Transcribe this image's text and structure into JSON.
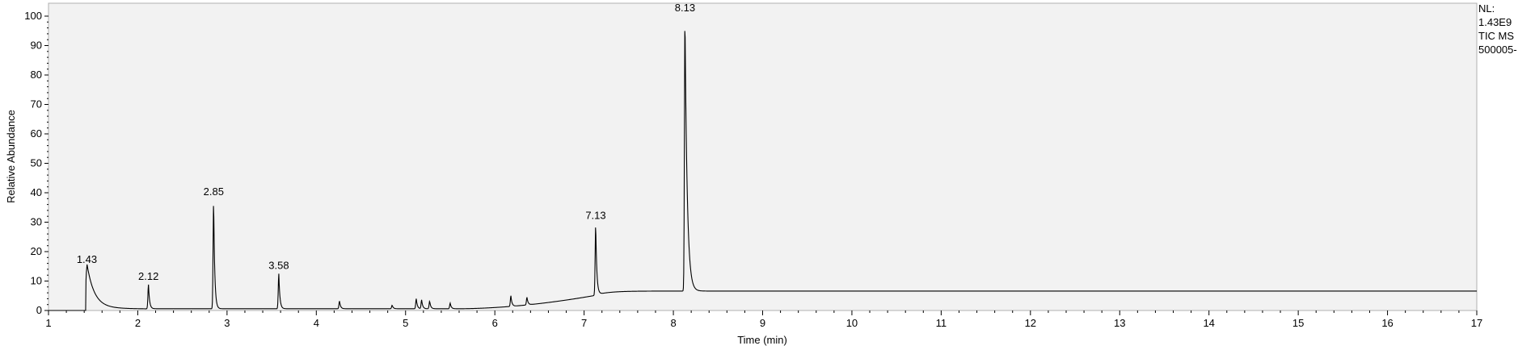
{
  "chart_data": {
    "type": "line",
    "xlabel": "Time (min)",
    "ylabel": "Relative Abundance",
    "xlim": [
      1,
      17
    ],
    "ylim": [
      0,
      100
    ],
    "x_ticks": [
      1,
      2,
      3,
      4,
      5,
      6,
      7,
      8,
      9,
      10,
      11,
      12,
      13,
      14,
      15,
      16,
      17
    ],
    "y_ticks": [
      0,
      10,
      20,
      30,
      40,
      50,
      60,
      70,
      80,
      90,
      100
    ],
    "grid": false,
    "line_color": "#000000",
    "plot_background": "#f2f2f2",
    "info": [
      "NL:",
      "1.43E9",
      "TIC  MS",
      "500005-"
    ],
    "peaks": [
      {
        "rt": 1.43,
        "label": "1.43",
        "height": 14.5
      },
      {
        "rt": 2.12,
        "label": "2.12",
        "height": 8.8
      },
      {
        "rt": 2.85,
        "label": "2.85",
        "height": 37.5
      },
      {
        "rt": 3.58,
        "label": "3.58",
        "height": 12.5
      },
      {
        "rt": 7.13,
        "label": "7.13",
        "height": 29.5
      },
      {
        "rt": 8.13,
        "label": "8.13",
        "height": 100
      }
    ],
    "minor_peaks": [
      {
        "rt": 4.26,
        "height": 3.2
      },
      {
        "rt": 4.85,
        "height": 1.8
      },
      {
        "rt": 5.12,
        "height": 4.0
      },
      {
        "rt": 5.18,
        "height": 3.6
      },
      {
        "rt": 5.27,
        "height": 3.2
      },
      {
        "rt": 5.5,
        "height": 2.5
      },
      {
        "rt": 6.18,
        "height": 5.0
      },
      {
        "rt": 6.36,
        "height": 4.5
      }
    ]
  }
}
